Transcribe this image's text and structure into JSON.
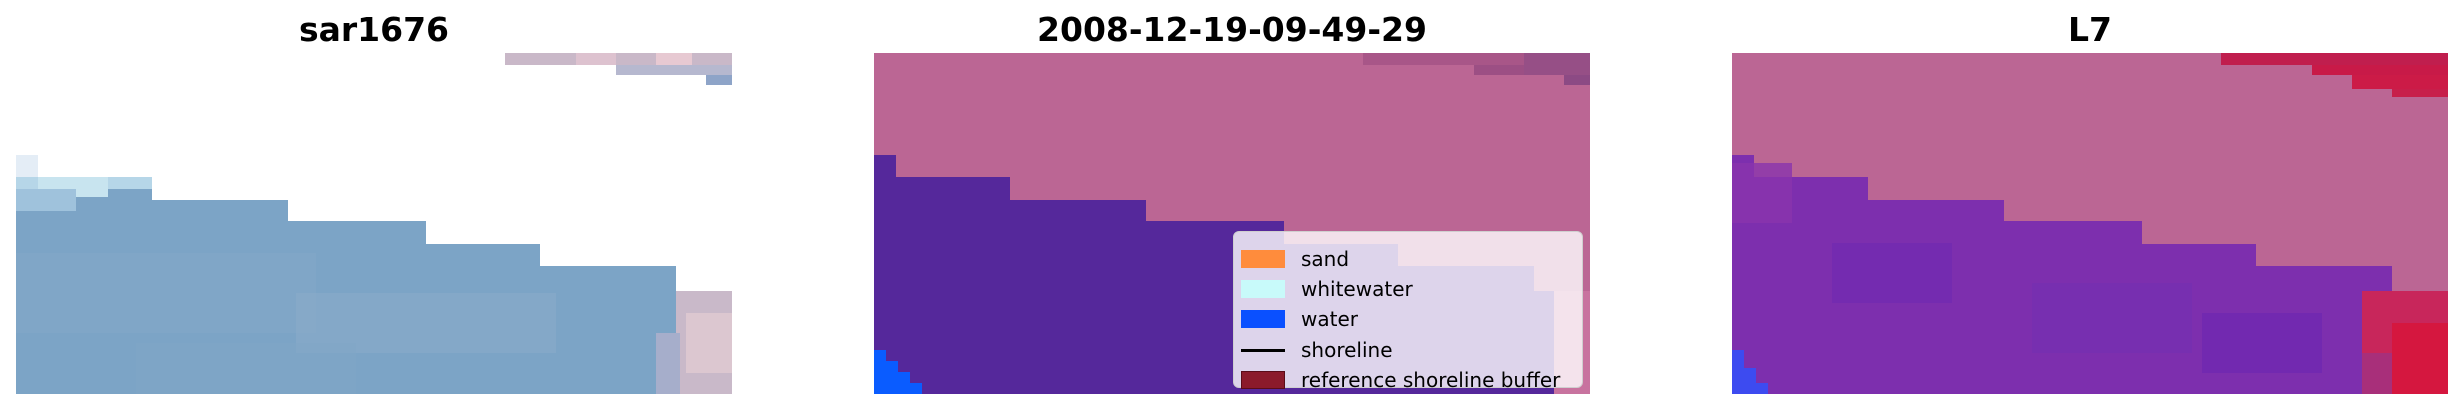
{
  "panels": [
    {
      "title": "sar1676"
    },
    {
      "title": "2008-12-19-09-49-29"
    },
    {
      "title": "L7"
    }
  ],
  "legend": {
    "items": [
      {
        "label": "sand",
        "color": "#ff8c3c",
        "kind": "patch"
      },
      {
        "label": "whitewater",
        "color": "#c8fafa",
        "kind": "patch"
      },
      {
        "label": "water",
        "color": "#0a50ff",
        "kind": "patch"
      },
      {
        "label": "shoreline",
        "color": "#000000",
        "kind": "line"
      },
      {
        "label": "reference shoreline buffer",
        "color": "#8b1a2b",
        "kind": "patch"
      }
    ]
  },
  "colors": {
    "pink_overlay": "#bb6694",
    "water_overlay": "#55289b",
    "raw_water": "#7aa3c6",
    "l7_purple": "#7d2fae",
    "l7_red": "#cc1741"
  }
}
